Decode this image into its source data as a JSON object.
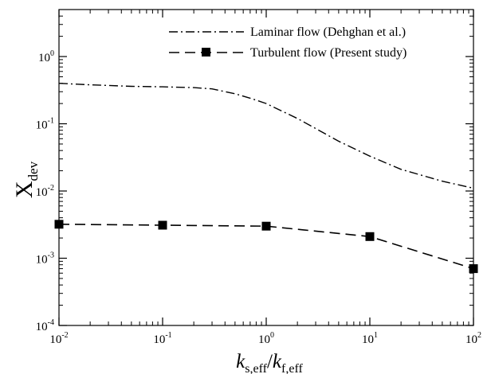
{
  "chart_data": {
    "type": "line",
    "x_scale": "log",
    "y_scale": "log",
    "xlim": [
      0.01,
      100
    ],
    "ylim": [
      0.0001,
      5
    ],
    "x_ticks": [
      {
        "value": 0.01,
        "base": "10",
        "exp": "-2"
      },
      {
        "value": 0.1,
        "base": "10",
        "exp": "-1"
      },
      {
        "value": 1,
        "base": "10",
        "exp": "0"
      },
      {
        "value": 10,
        "base": "10",
        "exp": "1"
      },
      {
        "value": 100,
        "base": "10",
        "exp": "2"
      }
    ],
    "y_ticks": [
      {
        "value": 0.0001,
        "base": "10",
        "exp": "-4"
      },
      {
        "value": 0.001,
        "base": "10",
        "exp": "-3"
      },
      {
        "value": 0.01,
        "base": "10",
        "exp": "-2"
      },
      {
        "value": 0.1,
        "base": "10",
        "exp": "-1"
      },
      {
        "value": 1,
        "base": "10",
        "exp": "0"
      }
    ],
    "xlabel": {
      "k1": "k",
      "sub1": "s,eff",
      "slash": "/",
      "k2": "k",
      "sub2": "f,eff"
    },
    "ylabel": {
      "main": "X",
      "sub": "dev"
    },
    "grid": false,
    "legend_position": "top-right",
    "series": [
      {
        "name": "Laminar flow (Dehghan et al.)",
        "style": "dash-dot",
        "marker": "none",
        "x": [
          0.01,
          0.02,
          0.05,
          0.1,
          0.2,
          0.3,
          0.5,
          0.7,
          1,
          2,
          3,
          5,
          10,
          20,
          50,
          100
        ],
        "y": [
          0.4,
          0.38,
          0.36,
          0.355,
          0.345,
          0.33,
          0.28,
          0.24,
          0.2,
          0.12,
          0.085,
          0.055,
          0.033,
          0.021,
          0.014,
          0.011
        ]
      },
      {
        "name": "Turbulent flow (Present study)",
        "style": "dashed",
        "marker": "square",
        "x": [
          0.01,
          0.1,
          1,
          10,
          100
        ],
        "y": [
          0.0032,
          0.0031,
          0.003,
          0.0021,
          0.0007
        ]
      }
    ]
  }
}
